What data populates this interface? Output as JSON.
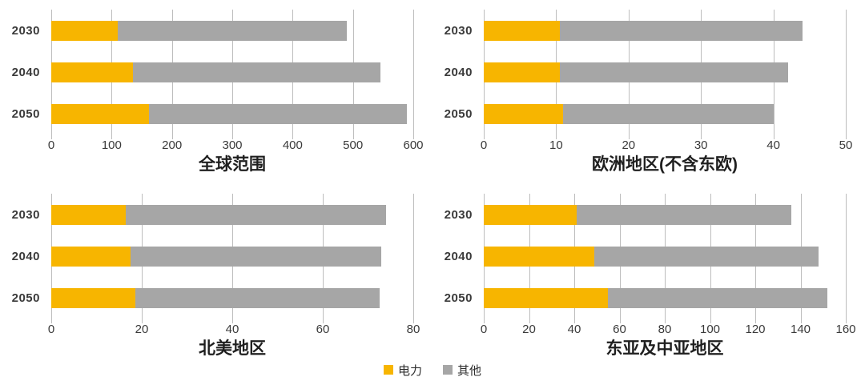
{
  "figure": {
    "background": "#ffffff"
  },
  "colors": {
    "electricity": "#F7B500",
    "other": "#A6A6A6",
    "gridline": "#BDBDBD",
    "tick_text": "#3A3A3A",
    "title_text": "#1F1F1F"
  },
  "legend": {
    "position": "bottom-center",
    "items": [
      {
        "key": "electricity",
        "label": "电力",
        "color": "#F7B500"
      },
      {
        "key": "other",
        "label": "其他",
        "color": "#A6A6A6"
      }
    ]
  },
  "chart_data": [
    {
      "type": "bar",
      "orientation": "horizontal",
      "stacked": true,
      "title": "全球范围",
      "categories": [
        "2030",
        "2040",
        "2050"
      ],
      "series": [
        {
          "key": "electricity",
          "name": "电力",
          "color": "#F7B500",
          "values": [
            110,
            135,
            162
          ]
        },
        {
          "key": "other",
          "name": "其他",
          "color": "#A6A6A6",
          "values": [
            380,
            410,
            428
          ]
        }
      ],
      "totals": [
        490,
        545,
        590
      ],
      "xlabel": "",
      "ylabel": "",
      "xlim": [
        0,
        600
      ],
      "xticks": [
        0,
        100,
        200,
        300,
        400,
        500,
        600
      ],
      "grid": true
    },
    {
      "type": "bar",
      "orientation": "horizontal",
      "stacked": true,
      "title": "欧洲地区(不含东欧)",
      "categories": [
        "2030",
        "2040",
        "2050"
      ],
      "series": [
        {
          "key": "electricity",
          "name": "电力",
          "color": "#F7B500",
          "values": [
            10.5,
            10.5,
            11
          ]
        },
        {
          "key": "other",
          "name": "其他",
          "color": "#A6A6A6",
          "values": [
            33.5,
            31.5,
            29
          ]
        }
      ],
      "totals": [
        44,
        42,
        40
      ],
      "xlabel": "",
      "ylabel": "",
      "xlim": [
        0,
        50
      ],
      "xticks": [
        0,
        10,
        20,
        30,
        40,
        50
      ],
      "grid": true
    },
    {
      "type": "bar",
      "orientation": "horizontal",
      "stacked": true,
      "title": "北美地区",
      "categories": [
        "2030",
        "2040",
        "2050"
      ],
      "series": [
        {
          "key": "electricity",
          "name": "电力",
          "color": "#F7B500",
          "values": [
            16.5,
            17.5,
            18.5
          ]
        },
        {
          "key": "other",
          "name": "其他",
          "color": "#A6A6A6",
          "values": [
            57.5,
            55.5,
            54
          ]
        }
      ],
      "totals": [
        74,
        73,
        72.5
      ],
      "xlabel": "",
      "ylabel": "",
      "xlim": [
        0,
        80
      ],
      "xticks": [
        0,
        20,
        40,
        60,
        80
      ],
      "grid": true
    },
    {
      "type": "bar",
      "orientation": "horizontal",
      "stacked": true,
      "title": "东亚及中亚地区",
      "categories": [
        "2030",
        "2040",
        "2050"
      ],
      "series": [
        {
          "key": "electricity",
          "name": "电力",
          "color": "#F7B500",
          "values": [
            41,
            49,
            55
          ]
        },
        {
          "key": "other",
          "name": "其他",
          "color": "#A6A6A6",
          "values": [
            95,
            99,
            97
          ]
        }
      ],
      "totals": [
        136,
        148,
        152
      ],
      "xlabel": "",
      "ylabel": "",
      "xlim": [
        0,
        160
      ],
      "xticks": [
        0,
        20,
        40,
        60,
        80,
        100,
        120,
        140,
        160
      ],
      "grid": true
    }
  ]
}
